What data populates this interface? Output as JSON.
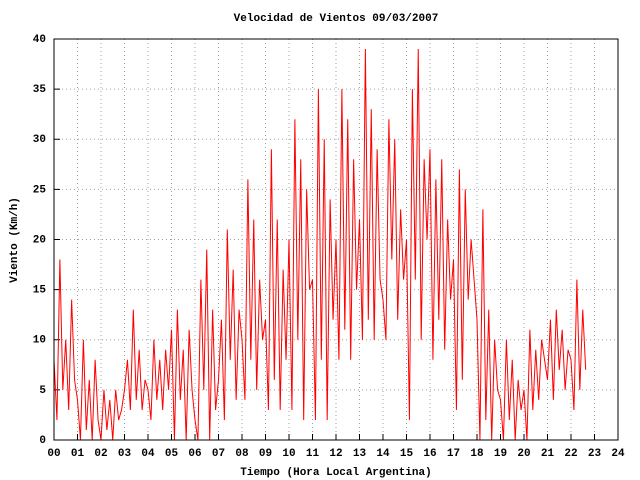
{
  "chart_data": {
    "type": "line",
    "title": "Velocidad de Vientos 09/03/2007",
    "x_label": "Tiempo (Hora Local Argentina)",
    "y_label": "Viento (Km/h)",
    "color": "#ff0000",
    "grid": true,
    "xlim": [
      0,
      24
    ],
    "ylim": [
      0,
      40
    ],
    "xticks": [
      {
        "value": 0,
        "label": "00"
      },
      {
        "value": 1,
        "label": "01"
      },
      {
        "value": 2,
        "label": "02"
      },
      {
        "value": 3,
        "label": "03"
      },
      {
        "value": 4,
        "label": "04"
      },
      {
        "value": 5,
        "label": "05"
      },
      {
        "value": 6,
        "label": "06"
      },
      {
        "value": 7,
        "label": "07"
      },
      {
        "value": 8,
        "label": "08"
      },
      {
        "value": 9,
        "label": "09"
      },
      {
        "value": 10,
        "label": "10"
      },
      {
        "value": 11,
        "label": "11"
      },
      {
        "value": 12,
        "label": "12"
      },
      {
        "value": 13,
        "label": "13"
      },
      {
        "value": 14,
        "label": "14"
      },
      {
        "value": 15,
        "label": "15"
      },
      {
        "value": 16,
        "label": "16"
      },
      {
        "value": 17,
        "label": "17"
      },
      {
        "value": 18,
        "label": "18"
      },
      {
        "value": 19,
        "label": "19"
      },
      {
        "value": 20,
        "label": "20"
      },
      {
        "value": 21,
        "label": "21"
      },
      {
        "value": 22,
        "label": "22"
      },
      {
        "value": 23,
        "label": "23"
      },
      {
        "value": 24,
        "label": "24"
      }
    ],
    "yticks": [
      0,
      5,
      10,
      15,
      20,
      25,
      30,
      35,
      40
    ],
    "x": [
      0,
      0.125,
      0.25,
      0.375,
      0.5,
      0.625,
      0.75,
      0.875,
      1,
      1.125,
      1.25,
      1.375,
      1.5,
      1.625,
      1.75,
      1.875,
      2,
      2.125,
      2.25,
      2.375,
      2.5,
      2.625,
      2.75,
      2.875,
      3,
      3.125,
      3.25,
      3.375,
      3.5,
      3.625,
      3.75,
      3.875,
      4,
      4.125,
      4.25,
      4.375,
      4.5,
      4.625,
      4.75,
      4.875,
      5,
      5.125,
      5.25,
      5.375,
      5.5,
      5.625,
      5.75,
      5.875,
      6,
      6.125,
      6.25,
      6.375,
      6.5,
      6.625,
      6.75,
      6.875,
      7,
      7.125,
      7.25,
      7.375,
      7.5,
      7.625,
      7.75,
      7.875,
      8,
      8.125,
      8.25,
      8.375,
      8.5,
      8.625,
      8.75,
      8.875,
      9,
      9.125,
      9.25,
      9.375,
      9.5,
      9.625,
      9.75,
      9.875,
      10,
      10.125,
      10.25,
      10.375,
      10.5,
      10.625,
      10.75,
      10.875,
      11,
      11.125,
      11.25,
      11.375,
      11.5,
      11.625,
      11.75,
      11.875,
      12,
      12.125,
      12.25,
      12.375,
      12.5,
      12.625,
      12.75,
      12.875,
      13,
      13.125,
      13.25,
      13.375,
      13.5,
      13.625,
      13.75,
      13.875,
      14,
      14.125,
      14.25,
      14.375,
      14.5,
      14.625,
      14.75,
      14.875,
      15,
      15.125,
      15.25,
      15.375,
      15.5,
      15.625,
      15.75,
      15.875,
      16,
      16.125,
      16.25,
      16.375,
      16.5,
      16.625,
      16.75,
      16.875,
      17,
      17.125,
      17.25,
      17.375,
      17.5,
      17.625,
      17.75,
      17.875,
      18,
      18.125,
      18.25,
      18.375,
      18.5,
      18.625,
      18.75,
      18.875,
      19,
      19.125,
      19.25,
      19.375,
      19.5,
      19.625,
      19.75,
      19.875,
      20,
      20.125,
      20.25,
      20.375,
      20.5,
      20.625,
      20.75,
      20.875,
      21,
      21.125,
      21.25,
      21.375,
      21.5,
      21.625,
      21.75,
      21.875,
      22,
      22.125,
      22.25,
      22.375,
      22.5,
      22.625
    ],
    "values": [
      8,
      2,
      18,
      5,
      10,
      3,
      14,
      6,
      4,
      0,
      10,
      1,
      6,
      0,
      8,
      2,
      0,
      5,
      1,
      4,
      0,
      5,
      2,
      3,
      5,
      8,
      3,
      13,
      4,
      9,
      3,
      6,
      5,
      2,
      10,
      4,
      8,
      3,
      9,
      5,
      11,
      0,
      13,
      4,
      9,
      0,
      11,
      5,
      2,
      0,
      16,
      5,
      19,
      0,
      13,
      3,
      6,
      12,
      2,
      21,
      8,
      17,
      4,
      13,
      10,
      4,
      26,
      8,
      22,
      5,
      16,
      10,
      12,
      3,
      29,
      6,
      22,
      3,
      17,
      8,
      20,
      3,
      32,
      10,
      28,
      2,
      25,
      15,
      16,
      2,
      35,
      8,
      30,
      2,
      24,
      12,
      20,
      8,
      35,
      11,
      32,
      8,
      28,
      15,
      22,
      10,
      39,
      12,
      33,
      10,
      29,
      16,
      14,
      10,
      32,
      18,
      30,
      12,
      23,
      16,
      20,
      2,
      35,
      16,
      39,
      10,
      28,
      20,
      29,
      8,
      26,
      12,
      28,
      9,
      22,
      14,
      18,
      3,
      27,
      6,
      25,
      14,
      20,
      16,
      12,
      0,
      23,
      2,
      13,
      0,
      10,
      5,
      4,
      0,
      10,
      2,
      8,
      0,
      6,
      3,
      5,
      0,
      11,
      3,
      9,
      4,
      10,
      8,
      6,
      12,
      4,
      13,
      7,
      11,
      5,
      9,
      8,
      3,
      16,
      5,
      13,
      7
    ]
  }
}
